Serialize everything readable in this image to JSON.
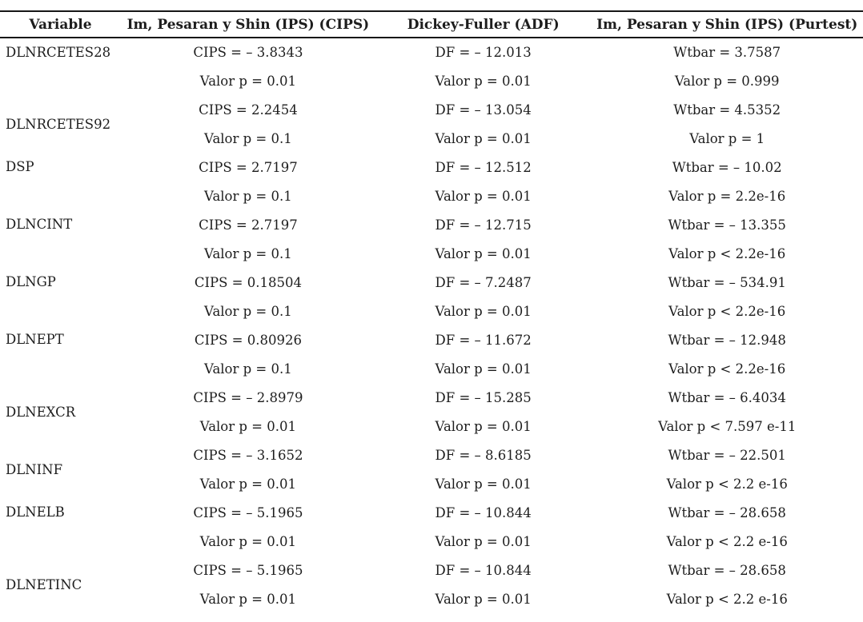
{
  "table": {
    "columns": {
      "variable": "Variable",
      "cips": "Im, Pesaran y Shin (IPS) (CIPS)",
      "adf": "Dickey-Fuller (ADF)",
      "purtest": "Im, Pesaran y Shin (IPS) (Purtest)"
    },
    "rows": [
      {
        "variable": "DLNRCETES28",
        "cips": "CIPS = – 3.8343",
        "cips_p": "Valor p = 0.01",
        "adf": "DF = – 12.013",
        "adf_p": "Valor p = 0.01",
        "purtest": "Wtbar = 3.7587",
        "purtest_p": "Valor p = 0.999"
      },
      {
        "variable": "DLNRCETES92",
        "cips": "CIPS = 2.2454",
        "cips_p": "Valor p = 0.1",
        "adf": "DF = – 13.054",
        "adf_p": "Valor p = 0.01",
        "purtest": "Wtbar = 4.5352",
        "purtest_p": "Valor p = 1"
      },
      {
        "variable": "DSP",
        "cips": "CIPS = 2.7197",
        "cips_p": "Valor p = 0.1",
        "adf": "DF = – 12.512",
        "adf_p": "Valor p = 0.01",
        "purtest": "Wtbar = – 10.02",
        "purtest_p": "Valor p = 2.2e-16"
      },
      {
        "variable": "DLNCINT",
        "cips": "CIPS = 2.7197",
        "cips_p": "Valor p = 0.1",
        "adf": "DF = – 12.715",
        "adf_p": "Valor p = 0.01",
        "purtest": "Wtbar = – 13.355",
        "purtest_p": "Valor p < 2.2e-16"
      },
      {
        "variable": "DLNGP",
        "cips": "CIPS = 0.18504",
        "cips_p": "Valor p = 0.1",
        "adf": "DF = – 7.2487",
        "adf_p": "Valor p = 0.01",
        "purtest": "Wtbar = – 534.91",
        "purtest_p": "Valor p < 2.2e-16"
      },
      {
        "variable": "DLNEPT",
        "cips": "CIPS = 0.80926",
        "cips_p": "Valor p = 0.1",
        "adf": "DF = – 11.672",
        "adf_p": "Valor p = 0.01",
        "purtest": "Wtbar = – 12.948",
        "purtest_p": "Valor p < 2.2e-16"
      },
      {
        "variable": "DLNEXCR",
        "cips": "CIPS = – 2.8979",
        "cips_p": "Valor p = 0.01",
        "adf": "DF = – 15.285",
        "adf_p": "Valor p = 0.01",
        "purtest": "Wtbar = – 6.4034",
        "purtest_p": "Valor p < 7.597 e-11"
      },
      {
        "variable": "DLNINF",
        "cips": "CIPS = – 3.1652",
        "cips_p": "Valor p = 0.01",
        "adf": "DF = – 8.6185",
        "adf_p": "Valor p = 0.01",
        "purtest": "Wtbar = – 22.501",
        "purtest_p": "Valor p < 2.2 e-16"
      },
      {
        "variable": "DLNELB",
        "cips": "CIPS = – 5.1965",
        "cips_p": "Valor p = 0.01",
        "adf": "DF = – 10.844",
        "adf_p": "Valor p = 0.01",
        "purtest": "Wtbar = – 28.658",
        "purtest_p": "Valor p < 2.2 e-16"
      },
      {
        "variable": "DLNETINC",
        "cips": "CIPS = – 5.1965",
        "cips_p": "Valor p = 0.01",
        "adf": "DF = – 10.844",
        "adf_p": "Valor p = 0.01",
        "purtest": "Wtbar = – 28.658",
        "purtest_p": "Valor p < 2.2 e-16"
      }
    ],
    "colors": {
      "text": "#1d1d1d",
      "rule": "#171717",
      "background": "#ffffff"
    }
  }
}
